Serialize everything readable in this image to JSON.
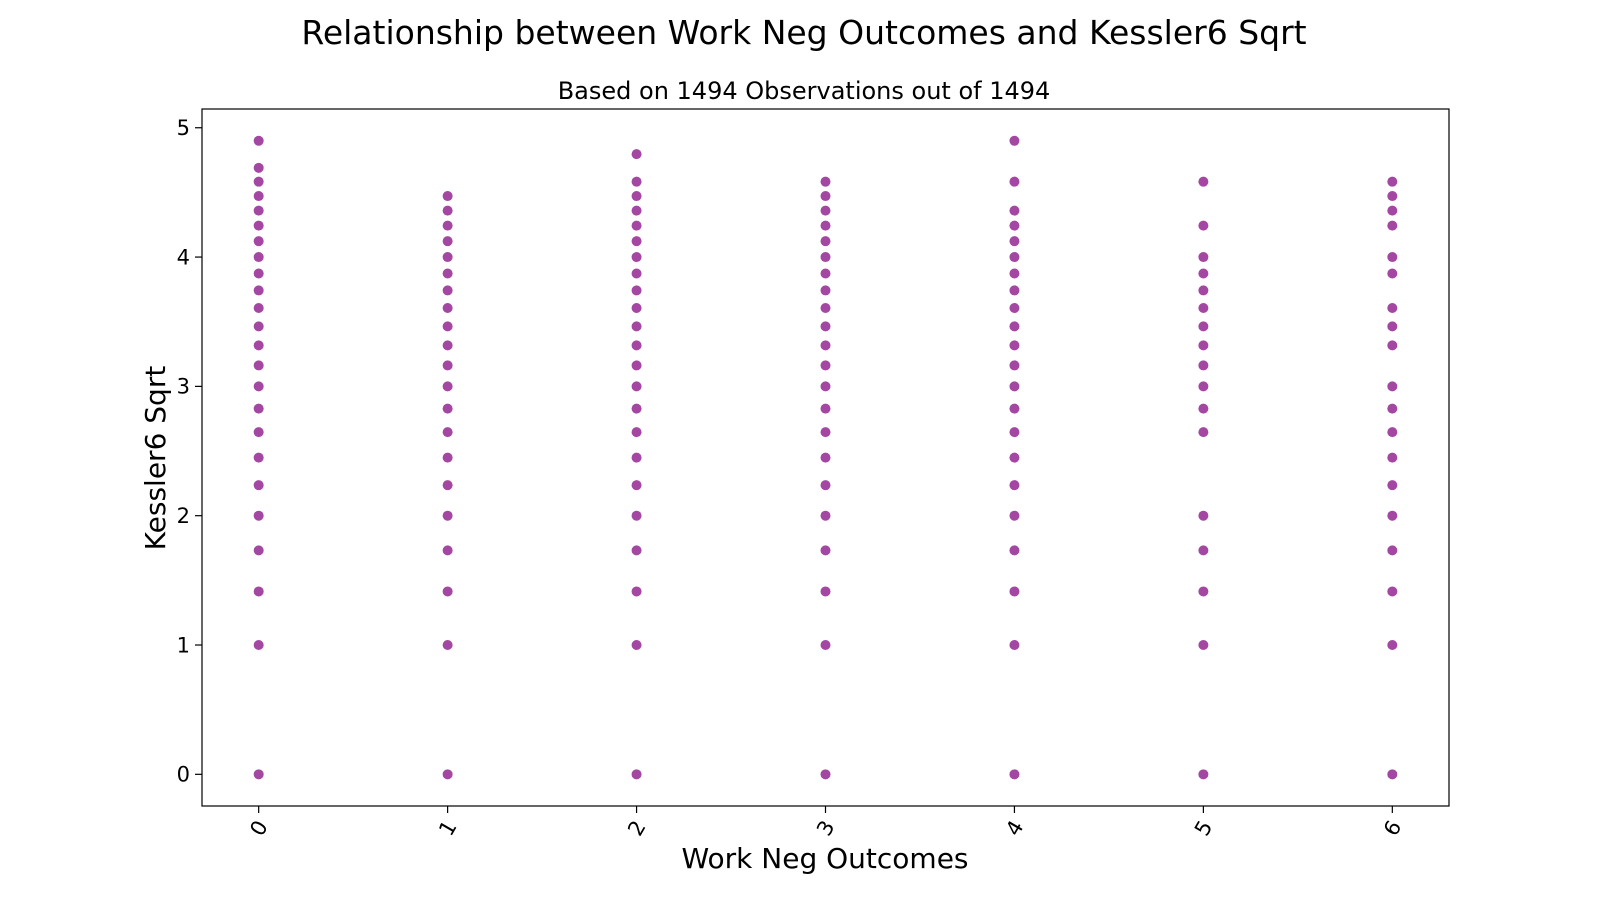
{
  "chart_data": {
    "type": "scatter",
    "title": "Relationship between Work Neg Outcomes and Kessler6 Sqrt",
    "subtitle": "Based on 1494 Observations out of 1494",
    "xlabel": "Work Neg Outcomes",
    "ylabel": "Kessler6 Sqrt",
    "xlim": [
      -0.3,
      6.3
    ],
    "ylim": [
      -0.245,
      5.145
    ],
    "xticks": [
      "0",
      "1",
      "2",
      "3",
      "4",
      "5",
      "6"
    ],
    "yticks": [
      "0",
      "1",
      "2",
      "3",
      "4",
      "5"
    ],
    "x_tick_rotation": "rotated",
    "grid": false,
    "marker_color": "#800080",
    "series": [
      {
        "points": [
          {
            "x": 0,
            "y": [
              0,
              1,
              1.414,
              1.732,
              2,
              2.236,
              2.449,
              2.646,
              2.828,
              3,
              3.162,
              3.317,
              3.464,
              3.606,
              3.742,
              3.873,
              4,
              4.123,
              4.243,
              4.359,
              4.472,
              4.583,
              4.69,
              4.899
            ]
          },
          {
            "x": 1,
            "y": [
              0,
              1,
              1.414,
              1.732,
              2,
              2.236,
              2.449,
              2.646,
              2.828,
              3,
              3.162,
              3.317,
              3.464,
              3.606,
              3.742,
              3.873,
              4,
              4.123,
              4.243,
              4.359,
              4.472
            ]
          },
          {
            "x": 2,
            "y": [
              0,
              1,
              1.414,
              1.732,
              2,
              2.236,
              2.449,
              2.646,
              2.828,
              3,
              3.162,
              3.317,
              3.464,
              3.606,
              3.742,
              3.873,
              4,
              4.123,
              4.243,
              4.359,
              4.472,
              4.583,
              4.796
            ]
          },
          {
            "x": 3,
            "y": [
              0,
              1,
              1.414,
              1.732,
              2,
              2.236,
              2.449,
              2.646,
              2.828,
              3,
              3.162,
              3.317,
              3.464,
              3.606,
              3.742,
              3.873,
              4,
              4.123,
              4.243,
              4.359,
              4.472,
              4.583
            ]
          },
          {
            "x": 4,
            "y": [
              0,
              1,
              1.414,
              1.732,
              2,
              2.236,
              2.449,
              2.646,
              2.828,
              3,
              3.162,
              3.317,
              3.464,
              3.606,
              3.742,
              3.873,
              4,
              4.123,
              4.243,
              4.359,
              4.583,
              4.899
            ]
          },
          {
            "x": 5,
            "y": [
              0,
              1,
              1.414,
              1.732,
              2,
              2.646,
              2.828,
              3,
              3.162,
              3.317,
              3.464,
              3.606,
              3.742,
              3.873,
              4,
              4.243,
              4.583
            ]
          },
          {
            "x": 6,
            "y": [
              0,
              1,
              1.414,
              1.732,
              2,
              2.236,
              2.449,
              2.646,
              2.828,
              3,
              3.317,
              3.464,
              3.606,
              3.873,
              4,
              4.243,
              4.359,
              4.472,
              4.583
            ]
          }
        ]
      }
    ]
  }
}
